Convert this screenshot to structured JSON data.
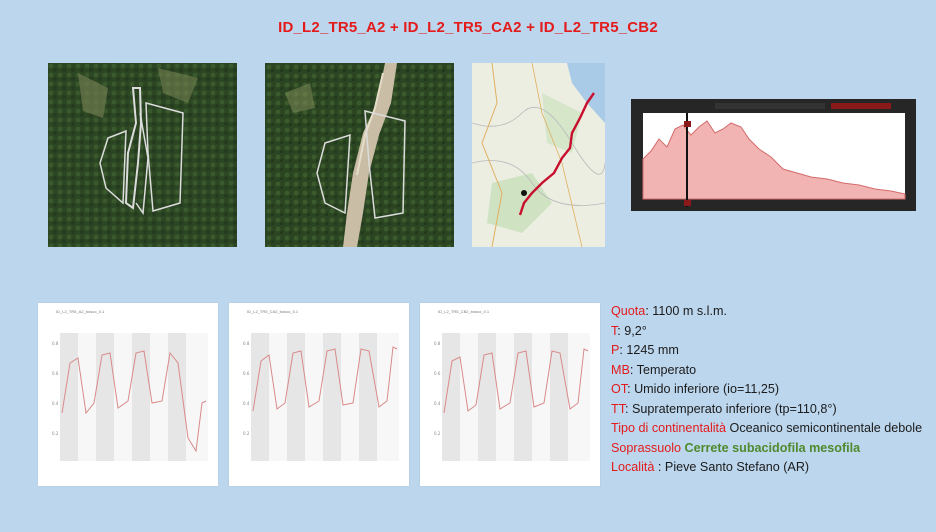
{
  "title": "ID_L2_TR5_A2 + ID_L2_TR5_CA2 + ID_L2_TR5_CB2",
  "images": {
    "satellite_1": "satellite-image",
    "satellite_2": "satellite-image",
    "map": "map-image",
    "elevation_profile": "elevation-profile-image"
  },
  "small_charts": [
    {
      "title": "ID_L2_TR5_A2_bosco_0.1"
    },
    {
      "title": "ID_L2_TR5_CA2_bosco_0.1"
    },
    {
      "title": "ID_L2_TR5_CB2_bosco_0.1"
    }
  ],
  "info": {
    "quota": {
      "label": "Quota",
      "value": ": 1100  m s.l.m."
    },
    "t": {
      "label": "T",
      "value": ": 9,2°"
    },
    "p": {
      "label": "P",
      "value": ": 1245 mm"
    },
    "mb": {
      "label": "MB",
      "value": ": Temperato"
    },
    "ot": {
      "label": "OT",
      "value": ": Umido inferiore (io=11,25)"
    },
    "tt": {
      "label": "TT",
      "value": ": Supratemperato inferiore (tp=110,8°)"
    },
    "continentalita": {
      "label": "Tipo di continentalità",
      "value": " Oceanico semicontinentale debole"
    },
    "soprassuolo": {
      "label": "Soprassuolo",
      "value": "Cerrete subacidofila  mesofila"
    },
    "localita": {
      "label": "Località",
      "value": " : Pieve Santo Stefano (AR)"
    }
  },
  "colors": {
    "background": "#bcd6ed",
    "title": "#e31b1b",
    "label": "#e31b1b",
    "soprassuolo_value": "#4f8a2e",
    "route": "#c8102e"
  }
}
